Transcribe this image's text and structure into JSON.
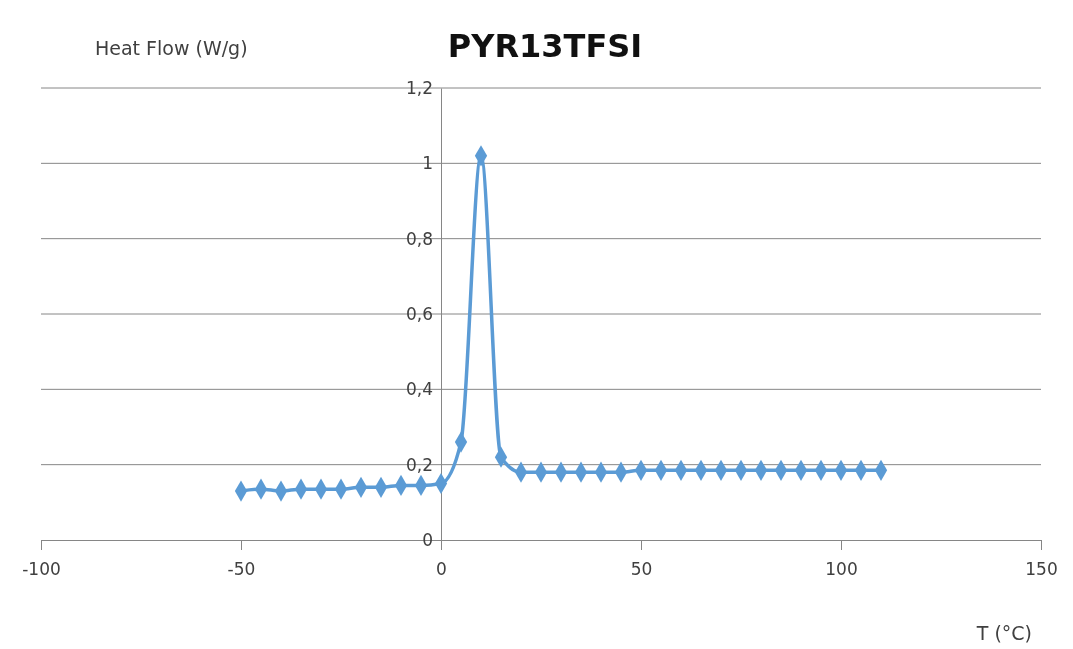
{
  "chart_data": {
    "type": "line",
    "title": "PYR13TFSI",
    "xlabel": "T (°C)",
    "ylabel": "Heat Flow (W/g)",
    "x": [
      -50,
      -45,
      -40,
      -35,
      -30,
      -25,
      -20,
      -15,
      -10,
      -5,
      0,
      5,
      10,
      15,
      20,
      25,
      30,
      35,
      40,
      45,
      50,
      55,
      60,
      65,
      70,
      75,
      80,
      85,
      90,
      95,
      100,
      105,
      110
    ],
    "series": [
      {
        "color": "#5b9bd5",
        "values": [
          0.13,
          0.135,
          0.13,
          0.135,
          0.135,
          0.135,
          0.14,
          0.14,
          0.145,
          0.145,
          0.15,
          0.26,
          1.02,
          0.22,
          0.18,
          0.18,
          0.18,
          0.18,
          0.18,
          0.18,
          0.185,
          0.185,
          0.185,
          0.185,
          0.185,
          0.185,
          0.185,
          0.185,
          0.185,
          0.185,
          0.185,
          0.185,
          0.185
        ]
      }
    ],
    "xlim": [
      -100,
      150
    ],
    "xticks": [
      -100,
      -50,
      0,
      50,
      100,
      150
    ],
    "ylim": [
      0,
      1.2
    ],
    "yticks": [
      0,
      {
        "value": 0.2,
        "label": "0,2"
      },
      {
        "value": 0.4,
        "label": "0,4"
      },
      {
        "value": 0.6,
        "label": "0,6"
      },
      {
        "value": 0.8,
        "label": "0,8"
      },
      1,
      {
        "value": 1.2,
        "label": "1,2"
      }
    ],
    "grid": "y",
    "marker": "diamond",
    "line_style": "solid"
  }
}
